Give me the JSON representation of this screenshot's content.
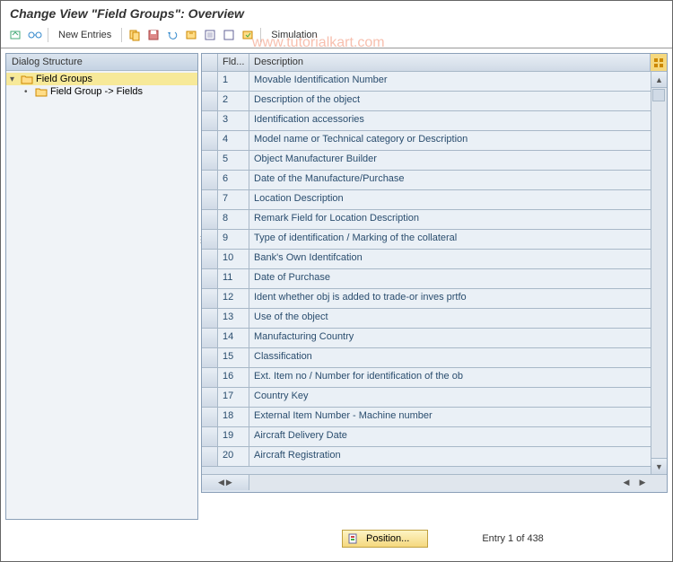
{
  "title": "Change View \"Field Groups\": Overview",
  "toolbar": {
    "new_entries": "New Entries",
    "simulation": "Simulation"
  },
  "watermark": "www.tutorialkart.com",
  "sidebar": {
    "header": "Dialog Structure",
    "items": [
      {
        "label": "Field Groups",
        "selected": true
      },
      {
        "label": "Field Group -> Fields",
        "selected": false
      }
    ]
  },
  "grid": {
    "headers": {
      "fld": "Fld...",
      "desc": "Description"
    },
    "rows": [
      {
        "n": "1",
        "d": "Movable Identification Number"
      },
      {
        "n": "2",
        "d": "Description of the object"
      },
      {
        "n": "3",
        "d": "Identification accessories"
      },
      {
        "n": "4",
        "d": "Model name or Technical category or Description"
      },
      {
        "n": "5",
        "d": "Object Manufacturer Builder"
      },
      {
        "n": "6",
        "d": "Date of the Manufacture/Purchase"
      },
      {
        "n": "7",
        "d": "Location Description"
      },
      {
        "n": "8",
        "d": "Remark Field for Location Description"
      },
      {
        "n": "9",
        "d": "Type of identification / Marking of the collateral"
      },
      {
        "n": "10",
        "d": "Bank's Own Identifcation"
      },
      {
        "n": "11",
        "d": "Date of Purchase"
      },
      {
        "n": "12",
        "d": "Ident whether obj is added to trade-or inves prtfo"
      },
      {
        "n": "13",
        "d": "Use of the object"
      },
      {
        "n": "14",
        "d": "Manufacturing Country"
      },
      {
        "n": "15",
        "d": "Classification"
      },
      {
        "n": "16",
        "d": "Ext. Item no / Number for identification of the ob"
      },
      {
        "n": "17",
        "d": "Country Key"
      },
      {
        "n": "18",
        "d": "External Item Number - Machine number"
      },
      {
        "n": "19",
        "d": "Aircraft Delivery Date"
      },
      {
        "n": "20",
        "d": "Aircraft Registration"
      }
    ]
  },
  "footer": {
    "position_btn": "Position...",
    "entry_text": "Entry 1 of 438"
  },
  "colors": {
    "accent_yellow": "#f5d87e",
    "panel_blue": "#dce5ef",
    "border": "#8ba0b8"
  }
}
